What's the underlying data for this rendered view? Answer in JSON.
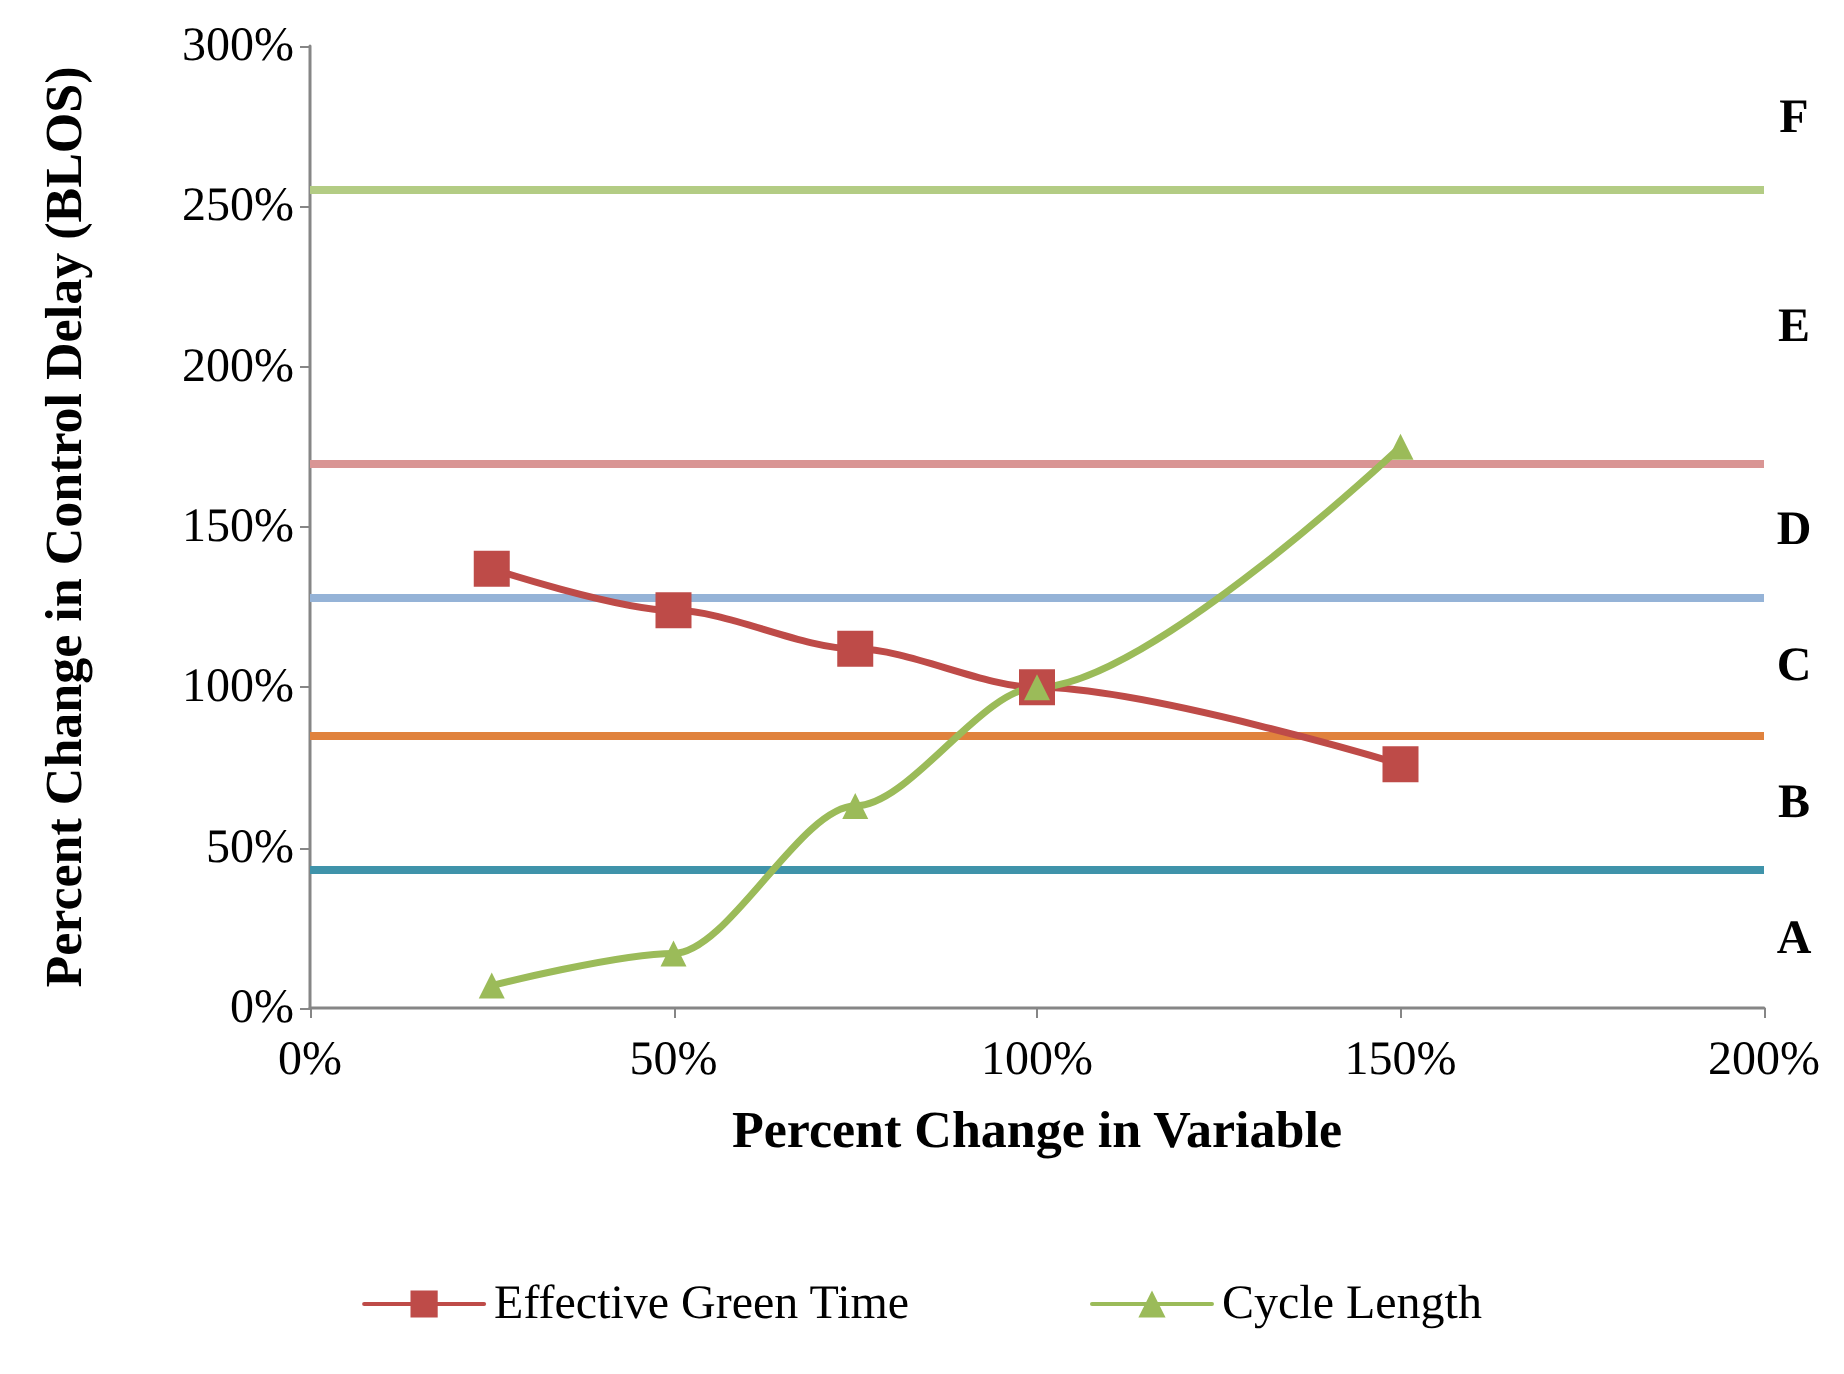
{
  "chart_data": {
    "type": "line",
    "xlabel": "Percent Change in Variable",
    "ylabel": "Percent Change in Control Delay (BLOS)",
    "xlim": [
      0,
      200
    ],
    "xticks": [
      {
        "value": 0,
        "label": "0%"
      },
      {
        "value": 50,
        "label": "50%"
      },
      {
        "value": 100,
        "label": "100%"
      },
      {
        "value": 150,
        "label": "150%"
      },
      {
        "value": 200,
        "label": "200%"
      }
    ],
    "ylim": [
      0,
      300
    ],
    "yticks": [
      {
        "value": 0,
        "label": "0%"
      },
      {
        "value": 50,
        "label": "50%"
      },
      {
        "value": 100,
        "label": "100%"
      },
      {
        "value": 150,
        "label": "150%"
      },
      {
        "value": 200,
        "label": "200%"
      },
      {
        "value": 250,
        "label": "250%"
      },
      {
        "value": 300,
        "label": "300%"
      }
    ],
    "x": [
      25,
      50,
      75,
      100,
      150
    ],
    "series": [
      {
        "name": "Effective Green Time",
        "color": "#be4b48",
        "marker": "square",
        "values": [
          137,
          124,
          112,
          100,
          76
        ]
      },
      {
        "name": "Cycle Length",
        "color": "#9bbb59",
        "marker": "triangle",
        "values": [
          7,
          17,
          63,
          100,
          175
        ]
      }
    ],
    "ref_lines": [
      {
        "axis": "y",
        "value": 255,
        "color": "#b3cc84"
      },
      {
        "axis": "y",
        "value": 170,
        "color": "#d99594"
      },
      {
        "axis": "y",
        "value": 128,
        "color": "#95b3d7"
      },
      {
        "axis": "y",
        "value": 85,
        "color": "#e0823d"
      },
      {
        "axis": "y",
        "value": 43,
        "color": "#3f93aa"
      }
    ],
    "annotations": [
      "F",
      "E",
      "D",
      "C",
      "B",
      "A"
    ],
    "legend": "bottom",
    "grid": false,
    "line_style": "solid"
  }
}
